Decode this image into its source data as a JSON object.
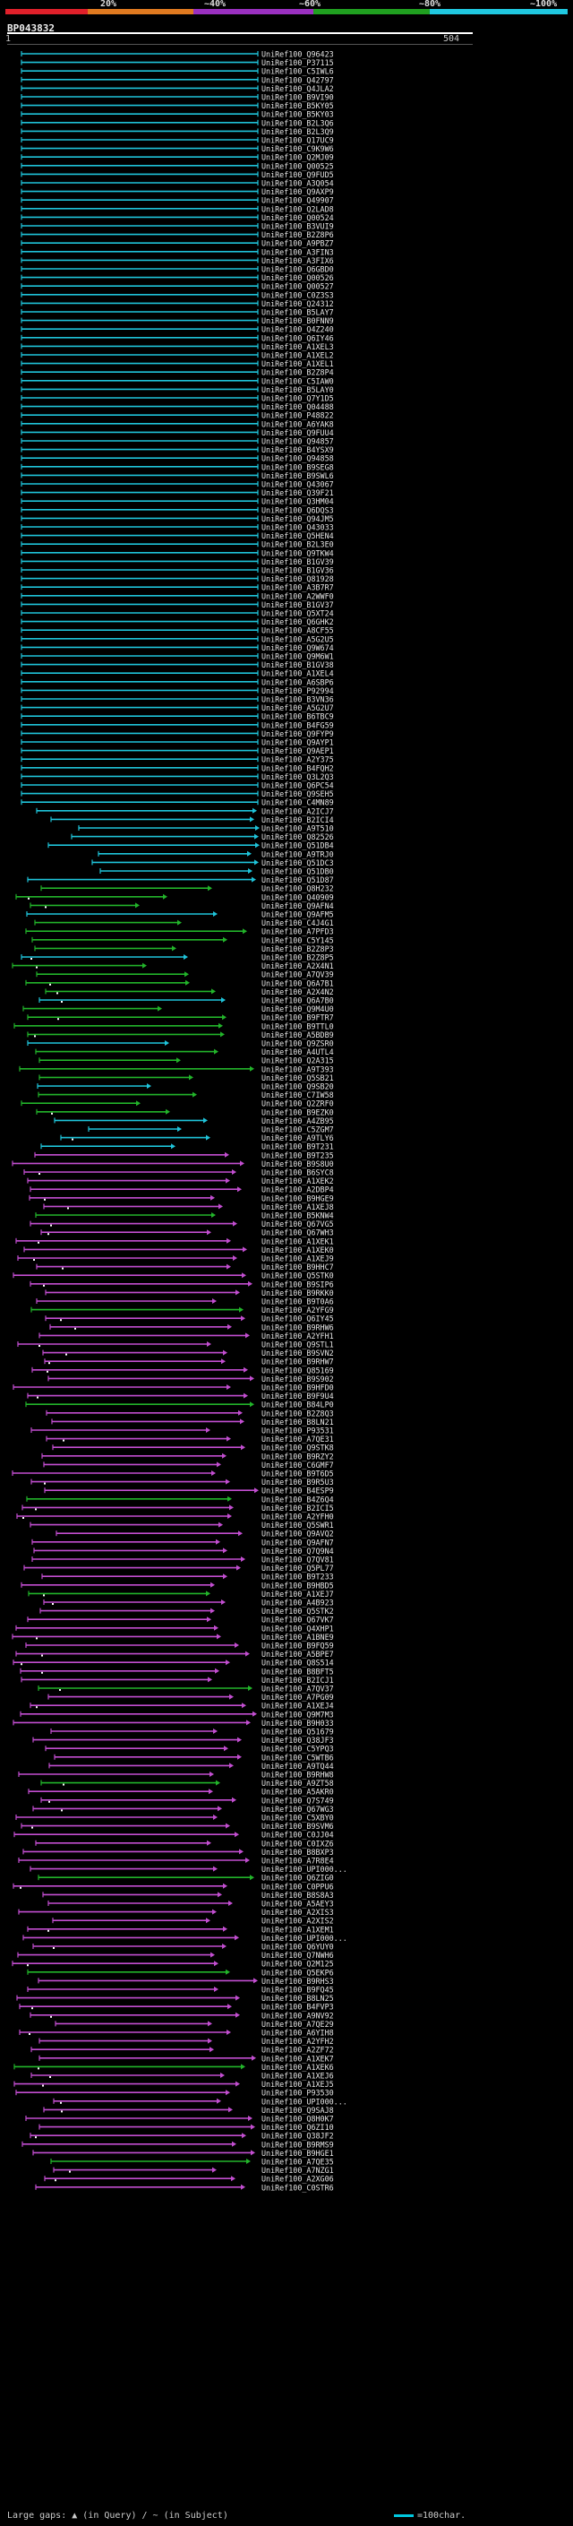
{
  "scale": {
    "stops": [
      {
        "label": "20%",
        "color": "#e0202a"
      },
      {
        "label": "~40%",
        "color": "#e07a20"
      },
      {
        "label": "~60%",
        "color": "#9a30c0"
      },
      {
        "label": "~80%",
        "color": "#20a020"
      },
      {
        "label": "~100%",
        "color": "#20c8e0"
      }
    ]
  },
  "header": {
    "title": "BP043832",
    "ruler_start": "1",
    "ruler_end": "504"
  },
  "footer": {
    "gaps_text": "Large gaps: ▲ (in Query) / ~ (in Subject)",
    "legend_text": "=100char."
  },
  "colors": {
    "cyan": "#1fc4da",
    "green": "#22b42a",
    "magenta": "#c24ed0"
  },
  "hits": [
    "UniRef100_Q96423",
    "UniRef100_P37115",
    "UniRef100_C5IWL6",
    "UniRef100_Q42797",
    "UniRef100_Q4JLA2",
    "UniRef100_B9VI90",
    "UniRef100_B5KY05",
    "UniRef100_B5KY03",
    "UniRef100_B2L3Q6",
    "UniRef100_B2L3Q9",
    "UniRef100_Q17UC9",
    "UniRef100_C9K9W6",
    "UniRef100_Q2MJ09",
    "UniRef100_Q00525",
    "UniRef100_Q9FUD5",
    "UniRef100_A3Q054",
    "UniRef100_Q9AXP9",
    "UniRef100_Q49907",
    "UniRef100_Q2LAD8",
    "UniRef100_Q00524",
    "UniRef100_B3VUI9",
    "UniRef100_B2Z8P6",
    "UniRef100_A9PBZ7",
    "UniRef100_A3FIN3",
    "UniRef100_A3FIX6",
    "UniRef100_Q6GBD0",
    "UniRef100_Q00526",
    "UniRef100_Q00527",
    "UniRef100_C0Z3S3",
    "UniRef100_Q24312",
    "UniRef100_B5LAY7",
    "UniRef100_B0FNN9",
    "UniRef100_Q4Z240",
    "UniRef100_Q6IY46",
    "UniRef100_A1XEL3",
    "UniRef100_A1XEL2",
    "UniRef100_A1XEL1",
    "UniRef100_B2Z8P4",
    "UniRef100_C5IAW0",
    "UniRef100_B5LAY0",
    "UniRef100_Q7Y1D5",
    "UniRef100_Q04488",
    "UniRef100_P48822",
    "UniRef100_A6YAK8",
    "UniRef100_Q9FUU4",
    "UniRef100_Q94857",
    "UniRef100_B4YSX9",
    "UniRef100_Q94858",
    "UniRef100_B9SEG8",
    "UniRef100_B9SWL6",
    "UniRef100_Q43067",
    "UniRef100_Q39F21",
    "UniRef100_Q3HM04",
    "UniRef100_Q6DQS3",
    "UniRef100_Q94JM5",
    "UniRef100_Q43033",
    "UniRef100_Q5HEN4",
    "UniRef100_B2L3E0",
    "UniRef100_Q9TKW4",
    "UniRef100_B1GV39",
    "UniRef100_B1GV36",
    "UniRef100_Q81928",
    "UniRef100_A3B7R7",
    "UniRef100_A2WWF0",
    "UniRef100_B1GV37",
    "UniRef100_Q5XT24",
    "UniRef100_Q6GHK2",
    "UniRef100_A8CF55",
    "UniRef100_A5G2U5",
    "UniRef100_Q9W674",
    "UniRef100_Q9M6W1",
    "UniRef100_B1GV38",
    "UniRef100_A1XEL4",
    "UniRef100_A6SBP6",
    "UniRef100_P92994",
    "UniRef100_B3VN36",
    "UniRef100_A5G2U7",
    "UniRef100_B6TBC9",
    "UniRef100_B4FG59",
    "UniRef100_Q9FYP9",
    "UniRef100_Q9AYP1",
    "UniRef100_Q9AEP1",
    "UniRef100_A2Y375",
    "UniRef100_B4FQH2",
    "UniRef100_Q3L2Q3",
    "UniRef100_Q6PC54",
    "UniRef100_Q9SEH5",
    "UniRef100_C4MN89",
    "UniRef100_A2ICJ7",
    "UniRef100_B2ICI4",
    "UniRef100_A9T510",
    "UniRef100_Q82526",
    "UniRef100_Q51DB4",
    "UniRef100_A9TRJ0",
    "UniRef100_Q51DC3",
    "UniRef100_Q51DB0",
    "UniRef100_Q51D87",
    "UniRef100_Q8H232",
    "UniRef100_Q40909",
    "UniRef100_Q9AFN4",
    "UniRef100_Q9AFM5",
    "UniRef100_C4J4G1",
    "UniRef100_A7PFD3",
    "UniRef100_C5Y145",
    "UniRef100_B2Z8P3",
    "UniRef100_B2Z8P5",
    "UniRef100_A2X4N1",
    "UniRef100_A7QV39",
    "UniRef100_Q6A7B1",
    "UniRef100_A2X4N2",
    "UniRef100_Q6A7B0",
    "UniRef100_Q9M4U0",
    "UniRef100_B9FTR7",
    "UniRef100_B9TTL0",
    "UniRef100_A5BDB9",
    "UniRef100_Q9ZSR0",
    "UniRef100_A4UTL4",
    "UniRef100_Q2A315",
    "UniRef100_A9T393",
    "UniRef100_Q5SB21",
    "UniRef100_Q9SB20",
    "UniRef100_C7IW58",
    "UniRef100_Q2ZRF0",
    "UniRef100_B9EZK0",
    "UniRef100_A4ZB95",
    "UniRef100_C5ZGM7",
    "UniRef100_A9TLY6",
    "UniRef100_B9T231",
    "UniRef100_B9T235",
    "UniRef100_B9S8U0",
    "UniRef100_B6SYC8",
    "UniRef100_A1XEK2",
    "UniRef100_A2DBP4",
    "UniRef100_B9HGE9",
    "UniRef100_A1XEJ8",
    "UniRef100_B5KNW4",
    "UniRef100_Q67VG5",
    "UniRef100_Q67WH3",
    "UniRef100_A1XEK1",
    "UniRef100_A1XEK0",
    "UniRef100_A1XEJ9",
    "UniRef100_B9HHC7",
    "UniRef100_Q5STK0",
    "UniRef100_B9SIP6",
    "UniRef100_B9RKK0",
    "UniRef100_B9T0A6",
    "UniRef100_A2YFG9",
    "UniRef100_Q6IY45",
    "UniRef100_B9RHW6",
    "UniRef100_A2YFH1",
    "UniRef100_Q9STL1",
    "UniRef100_B9SVN2",
    "UniRef100_B9RHW7",
    "UniRef100_Q85169",
    "UniRef100_B9S902",
    "UniRef100_B9HFD0",
    "UniRef100_B9F9U4",
    "UniRef100_B84LP0",
    "UniRef100_B2Z8Q3",
    "UniRef100_B8LN21",
    "UniRef100_P93531",
    "UniRef100_A7QE31",
    "UniRef100_Q9STK8",
    "UniRef100_B9RZY2",
    "UniRef100_C6GMF7",
    "UniRef100_B9T6D5",
    "UniRef100_B9R5U3",
    "UniRef100_B4ESP9",
    "UniRef100_B4Z6Q4",
    "UniRef100_B2ICI5",
    "UniRef100_A2YFH0",
    "UniRef100_Q5SWR1",
    "UniRef100_Q9AVQ2",
    "UniRef100_Q9AFN7",
    "UniRef100_Q7Q9N4",
    "UniRef100_Q7QV81",
    "UniRef100_Q5PL77",
    "UniRef100_B9T233",
    "UniRef100_B9HBD5",
    "UniRef100_A1XEJ7",
    "UniRef100_A4B923",
    "UniRef100_Q5STK2",
    "UniRef100_Q67VK7",
    "UniRef100_Q4XHP1",
    "UniRef100_A1BNE9",
    "UniRef100_B9FQ59",
    "UniRef100_A5BPE7",
    "UniRef100_Q8S514",
    "UniRef100_B8BFT5",
    "UniRef100_B2ICJ1",
    "UniRef100_A7QV37",
    "UniRef100_A7PG09",
    "UniRef100_A1XEJ4",
    "UniRef100_Q9M7M3",
    "UniRef100_B9H033",
    "UniRef100_Q51679",
    "UniRef100_Q38JF3",
    "UniRef100_C5YPQ3",
    "UniRef100_C5WTB6",
    "UniRef100_A9TQ44",
    "UniRef100_B9RHW8",
    "UniRef100_A9ZT58",
    "UniRef100_A5AKR0",
    "UniRef100_Q7S749",
    "UniRef100_Q67WG3",
    "UniRef100_C5XBY0",
    "UniRef100_B9SVM6",
    "UniRef100_C0JJ04",
    "UniRef100_C0IXZ6",
    "UniRef100_B8BXP3",
    "UniRef100_A7R8E4",
    "UniRef100_UPI000...",
    "UniRef100_Q6ZIG0",
    "UniRef100_C0PPU6",
    "UniRef100_B8S8A3",
    "UniRef100_A5AEY3",
    "UniRef100_A2XIS3",
    "UniRef100_A2XIS2",
    "UniRef100_A1XEM1",
    "UniRef100_UPI000...",
    "UniRef100_Q6YUY0",
    "UniRef100_Q7NWH6",
    "UniRef100_Q2M125",
    "UniRef100_Q5EKP6",
    "UniRef100_B9RHS3",
    "UniRef100_B9FQ45",
    "UniRef100_B8LN25",
    "UniRef100_B4FVP3",
    "UniRef100_A9NV92",
    "UniRef100_A7QE29",
    "UniRef100_A6YIH8",
    "UniRef100_A2YFH2",
    "UniRef100_A2ZF72",
    "UniRef100_A1XEK7",
    "UniRef100_A1XEK6",
    "UniRef100_A1XEJ6",
    "UniRef100_A1XEJ5",
    "UniRef100_P93530",
    "UniRef100_UPI000...",
    "UniRef100_Q9SAJ8",
    "UniRef100_Q8H0K7",
    "UniRef100_Q6ZI10",
    "UniRef100_Q38JF2",
    "UniRef100_B9RMS9",
    "UniRef100_B9HGE1",
    "UniRef100_A7QE35",
    "UniRef100_A7NZG1",
    "UniRef100_A2XG06",
    "UniRef100_C0STR6"
  ]
}
